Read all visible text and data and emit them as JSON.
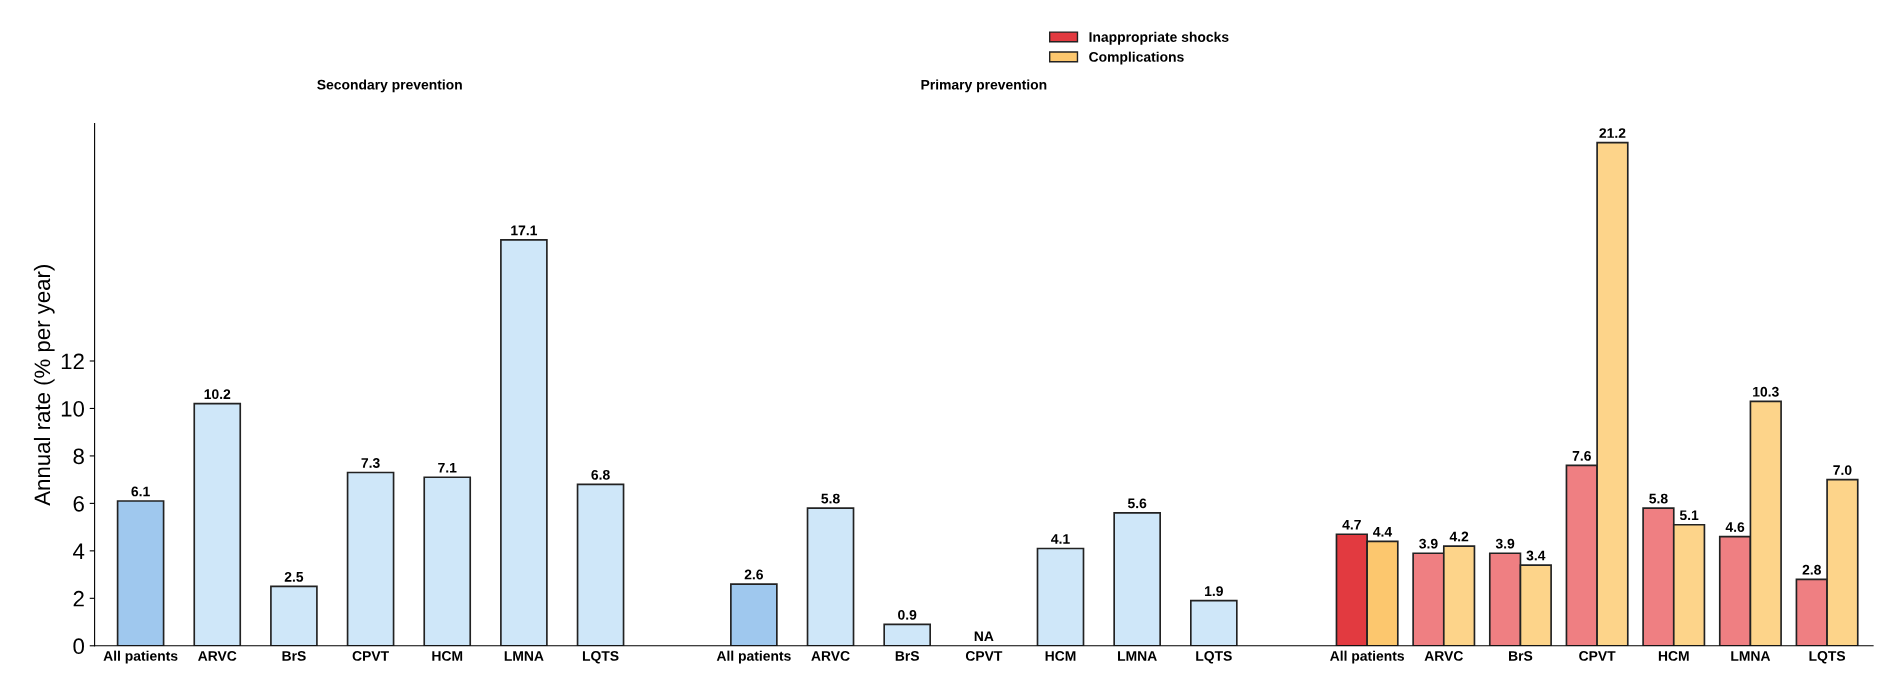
{
  "chart_data": {
    "type": "bar",
    "ylabel": "Annual rate (% per year)",
    "categories": [
      "All patients",
      "ARVC",
      "BrS",
      "CPVT",
      "HCM",
      "LMNA",
      "LQTS",
      null,
      "All patients",
      "ARVC",
      "BrS",
      "CPVT",
      "HCM",
      "LMNA",
      "LQTS",
      null,
      "All patients",
      "ARVC",
      "BrS",
      "CPVT",
      "HCM",
      "LMNA",
      "LQTS"
    ],
    "series": [
      {
        "colors": [
          "#9fc8ee",
          "#cfe7f9",
          "#cfe7f9",
          "#cfe7f9",
          "#cfe7f9",
          "#cfe7f9",
          "#cfe7f9",
          null,
          "#9fc8ee",
          "#cfe7f9",
          "#cfe7f9",
          null,
          "#cfe7f9",
          "#cfe7f9",
          "#cfe7f9",
          null,
          null,
          null,
          null,
          null,
          null,
          null,
          null
        ],
        "values": [
          6.1,
          10.2,
          2.5,
          7.3,
          7.1,
          17.1,
          6.8,
          null,
          2.6,
          5.8,
          0.9,
          null,
          4.1,
          5.6,
          1.9,
          null,
          null,
          null,
          null,
          null,
          null,
          null,
          null
        ],
        "value_labels": [
          "6.1",
          "10.2",
          "2.5",
          "7.3",
          "7.1",
          "17.1",
          "6.8",
          null,
          "2.6",
          "5.8",
          "0.9",
          "NA",
          "4.1",
          "5.6",
          "1.9",
          null,
          null,
          null,
          null,
          null,
          null,
          null,
          null
        ]
      },
      {
        "name": "Inappropriate shocks",
        "color": "#e23a40",
        "colors": [
          null,
          null,
          null,
          null,
          null,
          null,
          null,
          null,
          null,
          null,
          null,
          null,
          null,
          null,
          null,
          null,
          "#e23a40",
          "#ef7f82",
          "#ef7f82",
          "#ef7f82",
          "#ef7f82",
          "#ef7f82",
          "#ef7f82"
        ],
        "values": [
          null,
          null,
          null,
          null,
          null,
          null,
          null,
          null,
          null,
          null,
          null,
          null,
          null,
          null,
          null,
          null,
          4.7,
          3.9,
          3.9,
          7.6,
          5.8,
          4.6,
          2.8
        ],
        "value_labels": [
          null,
          null,
          null,
          null,
          null,
          null,
          null,
          null,
          null,
          null,
          null,
          null,
          null,
          null,
          null,
          null,
          "4.7",
          "3.9",
          "3.9",
          "7.6",
          "5.8",
          "4.6",
          "2.8"
        ]
      },
      {
        "name": "Complications",
        "color": "#fcc76e",
        "colors": [
          null,
          null,
          null,
          null,
          null,
          null,
          null,
          null,
          null,
          null,
          null,
          null,
          null,
          null,
          null,
          null,
          "#fcc76e",
          "#fdd48a",
          "#fdd48a",
          "#fdd48a",
          "#fdd48a",
          "#fdd48a",
          "#fdd48a"
        ],
        "values": [
          null,
          null,
          null,
          null,
          null,
          null,
          null,
          null,
          null,
          null,
          null,
          null,
          null,
          null,
          null,
          null,
          4.4,
          4.2,
          3.4,
          21.2,
          5.1,
          10.3,
          7.0
        ],
        "value_labels": [
          null,
          null,
          null,
          null,
          null,
          null,
          null,
          null,
          null,
          null,
          null,
          null,
          null,
          null,
          null,
          null,
          "4.4",
          "4.2",
          "3.4",
          "21.2",
          "5.1",
          "10.3",
          "7.0"
        ]
      }
    ],
    "ylim": [
      0,
      22
    ],
    "yticks": [
      0,
      2,
      4,
      6,
      8,
      10,
      12
    ],
    "annotations": [
      "Secondary prevention",
      "Primary prevention"
    ],
    "legend": "top",
    "grid": false
  }
}
